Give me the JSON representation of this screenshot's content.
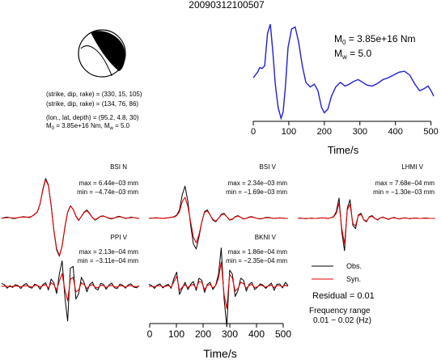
{
  "event_id": "20090312100507",
  "mechanism": {
    "plane1": "(strike, dip, rake) = (330, 15, 105)",
    "plane2": "(strike, dip, rake) = (134, 76, 86)",
    "location": "(lon., lat, depth) = (95.2, 4.8, 30)",
    "moment_prefix": "M",
    "moment_sub": "0",
    "moment_val": " = 3.85e+16 Nm, M",
    "mw_sub": "w",
    "mw_val": " = 5.0"
  },
  "stf_labels": {
    "m0_prefix": "M",
    "m0_sub": "0",
    "m0_val": " = 3.85e+16 Nm",
    "mw_prefix": "M",
    "mw_sub": "w",
    "mw_val": " = 5.0"
  },
  "legend": {
    "obs": "Obs.",
    "syn": "Syn.",
    "residual": "Residual = 0.01",
    "freq_title": "Frequency range",
    "freq_range": "0.01 − 0.02 (Hz)"
  },
  "colors": {
    "observed": "#000000",
    "synthetic": "#e00000",
    "stf": "#1f1fd6",
    "beachball": "#000000"
  },
  "chart_data": [
    {
      "type": "line",
      "name": "source-time-function",
      "xlabel": "Time/s",
      "xlim": [
        0,
        510
      ],
      "xticks": [
        0,
        100,
        200,
        300,
        400,
        500
      ],
      "x": [
        0,
        12,
        18,
        25,
        32,
        40,
        48,
        55,
        62,
        70,
        78,
        84,
        90,
        98,
        108,
        118,
        128,
        138,
        148,
        160,
        172,
        182,
        192,
        200,
        210,
        220,
        232,
        245,
        258,
        270,
        282,
        295,
        308,
        320,
        335,
        350,
        365,
        380,
        395,
        410,
        425,
        440,
        455,
        468,
        480,
        492,
        500,
        508
      ],
      "values": [
        0.42,
        0.48,
        0.53,
        0.52,
        0.55,
        0.9,
        1.0,
        0.7,
        0.35,
        0.1,
        -0.02,
        0.05,
        0.3,
        0.75,
        0.95,
        0.97,
        0.8,
        0.55,
        0.37,
        0.32,
        0.35,
        0.28,
        0.1,
        0.04,
        0.08,
        0.22,
        0.32,
        0.37,
        0.33,
        0.35,
        0.38,
        0.4,
        0.37,
        0.34,
        0.33,
        0.36,
        0.4,
        0.42,
        0.45,
        0.48,
        0.49,
        0.45,
        0.35,
        0.28,
        0.3,
        0.33,
        0.28,
        0.22
      ]
    },
    {
      "type": "line",
      "station": "BSI N",
      "max": "max = 6.44e−03 mm",
      "min": "min = −4.74e−03 mm",
      "obs": [
        0,
        0.02,
        0.03,
        0.02,
        0,
        0,
        0.02,
        0.03,
        0.04,
        0.03,
        0.02,
        0.05,
        0.1,
        0.15,
        0.35,
        0.7,
        0.95,
        0.8,
        0.3,
        -0.3,
        -0.75,
        -0.9,
        -0.65,
        -0.2,
        0.15,
        0.3,
        0.22,
        0.05,
        -0.05,
        0.05,
        0.15,
        0.2,
        0.12,
        0.02,
        -0.04,
        0,
        0.05,
        0.06,
        0.03,
        0,
        -0.01,
        0.01,
        0.04,
        0.05,
        0.02,
        0,
        0.01,
        0.03,
        0.02,
        0.01,
        0
      ],
      "syn": [
        0,
        0.01,
        0.02,
        0.02,
        0.01,
        0.01,
        0.02,
        0.03,
        0.03,
        0.03,
        0.03,
        0.05,
        0.09,
        0.16,
        0.35,
        0.68,
        0.92,
        0.78,
        0.32,
        -0.28,
        -0.72,
        -0.88,
        -0.66,
        -0.22,
        0.14,
        0.29,
        0.22,
        0.06,
        -0.04,
        0.05,
        0.14,
        0.18,
        0.11,
        0.02,
        -0.03,
        0.01,
        0.05,
        0.05,
        0.03,
        0.01,
        0,
        0.01,
        0.03,
        0.04,
        0.02,
        0.01,
        0.01,
        0.02,
        0.02,
        0.01,
        0
      ]
    },
    {
      "type": "line",
      "station": "BSI V",
      "max": "max = 2.34e−03 mm",
      "min": "min = −1.69e−03 mm",
      "obs": [
        0,
        0.01,
        0.02,
        0.02,
        0.01,
        0,
        0.01,
        0.02,
        0.03,
        0.05,
        0.1,
        0.25,
        0.7,
        0.95,
        0.5,
        -0.2,
        -0.75,
        -0.9,
        -0.55,
        -0.1,
        0.2,
        0.25,
        0.1,
        -0.05,
        -0.1,
        0,
        0.12,
        0.15,
        0.05,
        -0.05,
        -0.03,
        0.05,
        0.08,
        0.03,
        -0.02,
        0,
        0.04,
        0.05,
        0.02,
        0,
        -0.02,
        0,
        0.03,
        0.03,
        0.01,
        0,
        0.01,
        0.02,
        0.01,
        0,
        0
      ],
      "syn": [
        0,
        0.01,
        0.01,
        0.01,
        0.01,
        0,
        0.01,
        0.02,
        0.03,
        0.04,
        0.08,
        0.2,
        0.5,
        0.62,
        0.35,
        -0.1,
        -0.55,
        -0.72,
        -0.48,
        -0.1,
        0.18,
        0.22,
        0.1,
        -0.03,
        -0.08,
        0,
        0.1,
        0.13,
        0.05,
        -0.04,
        -0.02,
        0.04,
        0.07,
        0.03,
        -0.01,
        0,
        0.03,
        0.04,
        0.02,
        0,
        -0.01,
        0,
        0.02,
        0.02,
        0.01,
        0,
        0.01,
        0.01,
        0.01,
        0,
        0
      ]
    },
    {
      "type": "line",
      "station": "LHMI V",
      "max": "max = 7.68e−04 mm",
      "min": "min = −1.30e−03 mm",
      "obs": [
        0,
        0.01,
        0,
        -0.01,
        0,
        0.01,
        0,
        0,
        0.01,
        0.02,
        0.01,
        0,
        0.02,
        0.05,
        0.2,
        0.6,
        -0.4,
        -0.95,
        0.3,
        0.55,
        -0.2,
        -0.3,
        0.1,
        0.15,
        -0.05,
        -0.1,
        0.05,
        0.08,
        0,
        -0.05,
        0.02,
        0.04,
        0,
        -0.03,
        0.01,
        0.03,
        0,
        -0.02,
        0.01,
        0.02,
        0,
        -0.01,
        0.01,
        0.01,
        0,
        0,
        0.01,
        0.01,
        0,
        0,
        0
      ],
      "syn": [
        0,
        0,
        0,
        0,
        0,
        0,
        0,
        0,
        0.01,
        0.01,
        0.01,
        0,
        0.02,
        0.04,
        0.15,
        0.45,
        -0.3,
        -0.75,
        0.25,
        0.42,
        -0.15,
        -0.22,
        0.08,
        0.12,
        -0.04,
        -0.08,
        0.04,
        0.06,
        0,
        -0.04,
        0.02,
        0.03,
        0,
        -0.02,
        0.01,
        0.02,
        0,
        -0.01,
        0.01,
        0.01,
        0,
        0,
        0,
        0.01,
        0,
        0,
        0,
        0,
        0,
        0,
        0
      ]
    },
    {
      "type": "line",
      "station": "PPI V",
      "max": "max = 2.13e−04 mm",
      "min": "min = −3.11e−04 mm",
      "obs": [
        0.08,
        0.05,
        -0.05,
        0.02,
        -0.03,
        0.05,
        0.02,
        -0.06,
        0.04,
        0.08,
        -0.02,
        -0.05,
        0.06,
        0.03,
        -0.08,
        0.05,
        0.1,
        -0.1,
        0.2,
        0.1,
        -0.2,
        0.35,
        0.7,
        -0.3,
        -0.95,
        0.5,
        0.55,
        -0.35,
        -0.2,
        0.25,
        0.1,
        -0.15,
        0.05,
        0.12,
        -0.05,
        -0.1,
        0.08,
        0.06,
        -0.08,
        0.03,
        0.09,
        -0.04,
        -0.06,
        0.06,
        0.03,
        -0.05,
        0.04,
        0.07,
        -0.02,
        -0.04,
        0.02
      ],
      "syn": [
        0,
        0.01,
        0,
        -0.01,
        0,
        0.01,
        0,
        -0.01,
        0.01,
        0.02,
        0,
        -0.02,
        0.02,
        0.03,
        -0.02,
        0.02,
        0.05,
        -0.05,
        0.1,
        0.05,
        -0.1,
        0.15,
        0.35,
        -0.1,
        -0.4,
        0.2,
        0.25,
        -0.15,
        -0.1,
        0.1,
        0.05,
        -0.06,
        0.02,
        0.05,
        -0.02,
        -0.04,
        0.03,
        0.02,
        -0.03,
        0.01,
        0.03,
        -0.01,
        -0.02,
        0.02,
        0.01,
        -0.02,
        0.01,
        0.02,
        0,
        -0.01,
        0
      ]
    },
    {
      "type": "line",
      "station": "BKNI V",
      "xlabel": "Time/s",
      "xlim": [
        0,
        510
      ],
      "xticks": [
        0,
        100,
        200,
        300,
        400,
        500
      ],
      "max": "max = 1.86e−04 mm",
      "min": "min = −2.35e−04 mm",
      "obs": [
        0.05,
        0.02,
        -0.05,
        0.03,
        0.06,
        -0.04,
        0.02,
        0.05,
        -0.05,
        0.2,
        0.35,
        -0.2,
        -0.05,
        0.1,
        -0.08,
        0.05,
        0.12,
        -0.1,
        0.2,
        0.15,
        -0.15,
        0.05,
        0.1,
        -0.08,
        0.03,
        0.3,
        0.95,
        -0.3,
        -1.0,
        0.4,
        0.3,
        -0.25,
        -0.1,
        0.2,
        0.15,
        -0.12,
        0.05,
        0.1,
        -0.08,
        -0.02,
        0.06,
        0.03,
        -0.05,
        0.02,
        0.08,
        -0.1,
        0.05,
        0.06,
        -0.04,
        0.1,
        0.02
      ],
      "syn": [
        0,
        0,
        -0.01,
        0.01,
        0.02,
        -0.01,
        0,
        0.02,
        -0.02,
        0.12,
        0.25,
        -0.1,
        -0.02,
        0.04,
        -0.03,
        0.02,
        0.05,
        -0.05,
        0.12,
        0.1,
        -0.08,
        0.02,
        0.05,
        -0.04,
        0.02,
        0.2,
        0.6,
        -0.2,
        -0.55,
        0.3,
        0.2,
        -0.12,
        -0.05,
        0.1,
        0.07,
        -0.05,
        0.02,
        0.05,
        -0.03,
        -0.01,
        0.03,
        0.01,
        -0.02,
        0.01,
        0.03,
        -0.03,
        0.02,
        0.02,
        -0.01,
        0.03,
        0
      ]
    }
  ]
}
